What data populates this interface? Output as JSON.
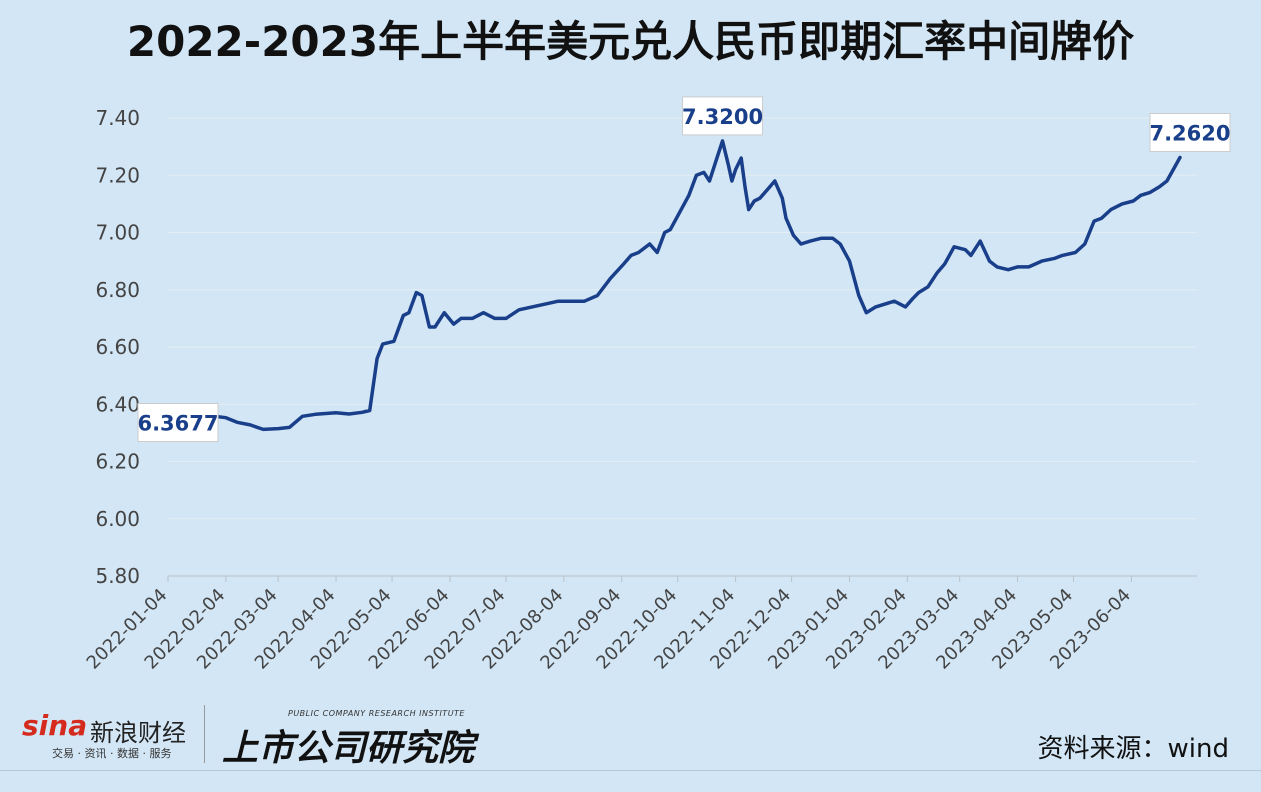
{
  "title": "2022-2023年上半年美元兑人民币即期汇率中间牌价",
  "footer": {
    "sina_logo": "sina",
    "sina_name": "新浪财经",
    "sina_tagline": "交易 · 资讯 · 数据 · 服务",
    "institute_subtitle": "PUBLIC COMPANY RESEARCH INSTITUTE",
    "institute_name": "上市公司研究院",
    "source": "资料来源：wind"
  },
  "colors": {
    "line": "#1a3f8a",
    "background": "#d3e6f5",
    "grid": "#e4edf4"
  },
  "chart_data": {
    "type": "line",
    "title": "2022-2023年上半年美元兑人民币即期汇率中间牌价",
    "xlabel": "",
    "ylabel": "",
    "ylim": [
      5.8,
      7.4
    ],
    "yticks": [
      "5.80",
      "6.00",
      "6.20",
      "6.40",
      "6.60",
      "6.80",
      "7.00",
      "7.20",
      "7.40"
    ],
    "xticks": [
      "2022-01-04",
      "2022-02-04",
      "2022-03-04",
      "2022-04-04",
      "2022-05-04",
      "2022-06-04",
      "2022-07-04",
      "2022-08-04",
      "2022-09-04",
      "2022-10-04",
      "2022-11-04",
      "2022-12-04",
      "2023-01-04",
      "2023-02-04",
      "2023-03-04",
      "2023-04-04",
      "2023-05-04",
      "2023-06-04"
    ],
    "grid": true,
    "series": [
      {
        "x": [
          "2022-01-04",
          "2022-01-10",
          "2022-01-17",
          "2022-01-24",
          "2022-02-04",
          "2022-02-10",
          "2022-02-17",
          "2022-02-24",
          "2022-03-04",
          "2022-03-10",
          "2022-03-17",
          "2022-03-24",
          "2022-04-04",
          "2022-04-11",
          "2022-04-18",
          "2022-04-22",
          "2022-04-26",
          "2022-04-29",
          "2022-05-05",
          "2022-05-10",
          "2022-05-13",
          "2022-05-17",
          "2022-05-20",
          "2022-05-24",
          "2022-05-27",
          "2022-06-01",
          "2022-06-06",
          "2022-06-10",
          "2022-06-16",
          "2022-06-22",
          "2022-06-28",
          "2022-07-04",
          "2022-07-11",
          "2022-07-18",
          "2022-07-25",
          "2022-08-01",
          "2022-08-08",
          "2022-08-15",
          "2022-08-22",
          "2022-08-29",
          "2022-09-05",
          "2022-09-09",
          "2022-09-13",
          "2022-09-19",
          "2022-09-23",
          "2022-09-27",
          "2022-09-30",
          "2022-10-10",
          "2022-10-14",
          "2022-10-18",
          "2022-10-21",
          "2022-10-25",
          "2022-10-28",
          "2022-10-31",
          "2022-11-02",
          "2022-11-04",
          "2022-11-07",
          "2022-11-09",
          "2022-11-11",
          "2022-11-14",
          "2022-11-17",
          "2022-11-21",
          "2022-11-25",
          "2022-11-29",
          "2022-12-01",
          "2022-12-05",
          "2022-12-09",
          "2022-12-14",
          "2022-12-20",
          "2022-12-26",
          "2022-12-30",
          "2023-01-04",
          "2023-01-09",
          "2023-01-13",
          "2023-01-18",
          "2023-01-28",
          "2023-02-03",
          "2023-02-07",
          "2023-02-10",
          "2023-02-15",
          "2023-02-20",
          "2023-02-24",
          "2023-03-01",
          "2023-03-07",
          "2023-03-10",
          "2023-03-15",
          "2023-03-20",
          "2023-03-24",
          "2023-03-30",
          "2023-04-04",
          "2023-04-10",
          "2023-04-17",
          "2023-04-24",
          "2023-04-28",
          "2023-05-05",
          "2023-05-10",
          "2023-05-15",
          "2023-05-19",
          "2023-05-24",
          "2023-05-30",
          "2023-06-05",
          "2023-06-09",
          "2023-06-14",
          "2023-06-19",
          "2023-06-23",
          "2023-06-30"
        ],
        "y": [
          6.3677,
          6.364,
          6.357,
          6.362,
          6.353,
          6.337,
          6.328,
          6.312,
          6.315,
          6.319,
          6.358,
          6.365,
          6.37,
          6.366,
          6.372,
          6.378,
          6.56,
          6.61,
          6.62,
          6.71,
          6.72,
          6.79,
          6.78,
          6.67,
          6.67,
          6.72,
          6.68,
          6.7,
          6.7,
          6.72,
          6.7,
          6.7,
          6.73,
          6.74,
          6.75,
          6.76,
          6.76,
          6.76,
          6.78,
          6.84,
          6.89,
          6.92,
          6.93,
          6.96,
          6.93,
          7.0,
          7.01,
          7.13,
          7.2,
          7.21,
          7.18,
          7.26,
          7.32,
          7.24,
          7.18,
          7.22,
          7.26,
          7.16,
          7.08,
          7.11,
          7.12,
          7.15,
          7.18,
          7.12,
          7.05,
          6.99,
          6.96,
          6.97,
          6.98,
          6.98,
          6.96,
          6.9,
          6.78,
          6.72,
          6.74,
          6.76,
          6.74,
          6.77,
          6.79,
          6.81,
          6.86,
          6.89,
          6.95,
          6.94,
          6.92,
          6.97,
          6.9,
          6.88,
          6.87,
          6.88,
          6.88,
          6.9,
          6.91,
          6.92,
          6.93,
          6.96,
          7.04,
          7.05,
          7.08,
          7.1,
          7.11,
          7.13,
          7.14,
          7.16,
          7.18,
          7.262
        ]
      }
    ],
    "annotations": [
      {
        "label": "6.3677",
        "x": "2022-01-04",
        "y": 6.3677
      },
      {
        "label": "7.3200",
        "x": "2022-10-28",
        "y": 7.32
      },
      {
        "label": "7.2620",
        "x": "2023-06-30",
        "y": 7.262
      }
    ]
  }
}
